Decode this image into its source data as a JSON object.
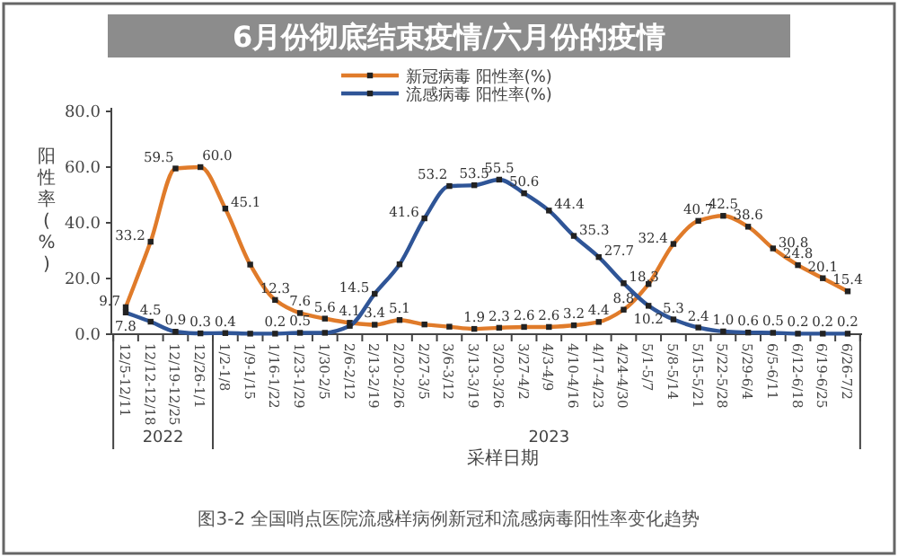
{
  "chart_data": {
    "type": "line",
    "title": "6月份彻底结束疫情/六月份的疫情",
    "categories": [
      "12/5-12/11",
      "12/12-12/18",
      "12/19-12/25",
      "12/26-1/1",
      "1/2-1/8",
      "1/9-1/15",
      "1/16-1/22",
      "1/23-1/29",
      "1/30-2/5",
      "2/6-2/12",
      "2/13-2/19",
      "2/20-2/26",
      "2/27-3/5",
      "3/6-3/12",
      "3/13-3/19",
      "3/20-3/26",
      "3/27-4/2",
      "4/3-4/9",
      "4/10-4/16",
      "4/17-4/23",
      "4/24-4/30",
      "5/1-5/7",
      "5/8-5/14",
      "5/15-5/21",
      "5/22-5/28",
      "5/29-6/4",
      "6/5-6/11",
      "6/12-6/18",
      "6/19-6/25",
      "6/26-7/2"
    ],
    "series": [
      {
        "name": "新冠病毒 阳性率(%)",
        "color": "#e07b2a",
        "values": [
          9.7,
          33.2,
          59.5,
          60.0,
          45.1,
          25.0,
          12.3,
          7.6,
          5.6,
          4.1,
          3.4,
          5.1,
          3.5,
          2.7,
          1.9,
          2.3,
          2.6,
          2.6,
          3.2,
          4.4,
          8.8,
          18.0,
          32.4,
          40.7,
          42.5,
          38.6,
          30.8,
          24.8,
          20.1,
          15.4
        ],
        "value_labels": [
          "9.7",
          "33.2",
          "59.5",
          "60.0",
          "45.1",
          null,
          "12.3",
          "7.6",
          "5.6",
          "4.1",
          "3.4",
          "5.1",
          null,
          null,
          "1.9",
          "2.3",
          "2.6",
          "2.6",
          "3.2",
          "4.4",
          "8.8",
          null,
          "32.4",
          "40.7",
          "42.5",
          "38.6",
          "30.8",
          "24.8",
          "20.1",
          "15.4"
        ]
      },
      {
        "name": "流感病毒 阳性率(%)",
        "color": "#2f5597",
        "values": [
          7.8,
          4.5,
          0.9,
          0.3,
          0.4,
          0.2,
          0.2,
          0.5,
          0.5,
          3.0,
          14.5,
          25.1,
          41.6,
          53.2,
          53.5,
          55.5,
          50.6,
          44.4,
          35.3,
          27.7,
          18.3,
          10.2,
          5.3,
          2.4,
          1.0,
          0.6,
          0.5,
          0.2,
          0.2,
          0.2
        ],
        "value_labels": [
          "7.8",
          "4.5",
          "0.9",
          "0.3",
          "0.4",
          null,
          "0.2",
          "0.5",
          null,
          null,
          "14.5",
          null,
          "41.6",
          "53.2",
          "53.5",
          "55.5",
          "50.6",
          "44.4",
          "35.3",
          "27.7",
          "18.3",
          "10.2",
          "5.3",
          "2.4",
          "1.0",
          "0.6",
          "0.5",
          "0.2",
          "0.2",
          "0.2"
        ]
      }
    ],
    "ylabel": "阳性率(%)",
    "xlabel": "采样日期",
    "ylim": [
      0,
      80
    ],
    "yticks": [
      {
        "value": 0,
        "label": "0.0"
      },
      {
        "value": 20,
        "label": "20.0"
      },
      {
        "value": 40,
        "label": "40.0"
      },
      {
        "value": 60,
        "label": "60.0"
      },
      {
        "value": 80,
        "label": "80.0"
      }
    ],
    "annotations": [
      "2022",
      "2023",
      "图3-2 全国哨点医院流感样病例新冠和流感病毒阳性率变化趋势"
    ],
    "legend": "top",
    "marker": "square",
    "line_style": "solid",
    "grid": false
  }
}
